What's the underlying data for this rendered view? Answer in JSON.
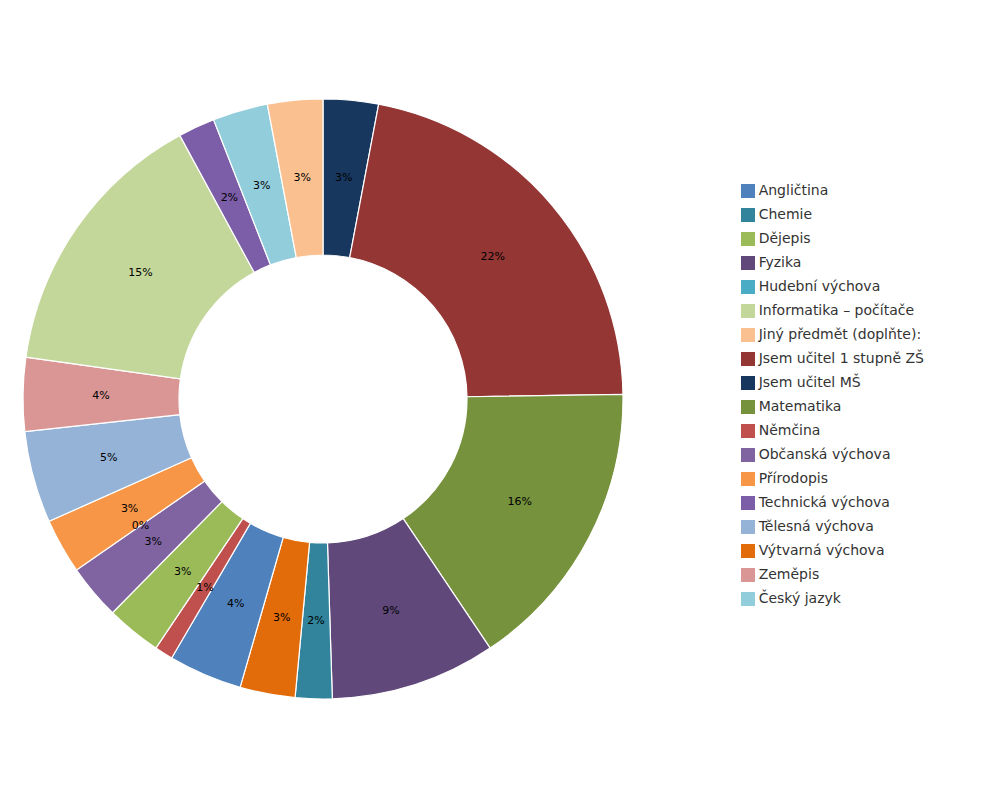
{
  "chart_data": {
    "type": "pie",
    "categories": [
      "Jsem učitel MŠ",
      "Jsem učitel 1 stupně ZŠ",
      "Matematika",
      "Fyzika",
      "Chemie",
      "Výtvarná výchova",
      "Angličtina",
      "Němčina",
      "Dějepis",
      "Občanská výchova",
      "Hudební výchova",
      "Přírodopis",
      "Tělesná výchova",
      "Zeměpis",
      "Informatika – počítače",
      "Technická výchova",
      "Český jazyk",
      "Jiný předmět (doplňte):"
    ],
    "values": [
      3,
      22,
      16,
      9,
      2,
      3,
      4,
      1,
      3,
      3,
      0,
      3,
      5,
      4,
      15,
      2,
      3,
      3
    ],
    "value_labels": [
      "3%",
      "22%",
      "16%",
      "9%",
      "2%",
      "3%",
      "4%",
      "1%",
      "3%",
      "3%",
      "0%",
      "3%",
      "5%",
      "4%",
      "15%",
      "2%",
      "3%",
      "3%"
    ],
    "colors": [
      "#17375E",
      "#943634",
      "#76923C",
      "#60497A",
      "#31849B",
      "#E26B0A",
      "#4F81BD",
      "#C0504D",
      "#9BBB59",
      "#8064A2",
      "#4BACC6",
      "#F79646",
      "#95B3D7",
      "#D99694",
      "#C4D79B",
      "#7B5EA7",
      "#92CDDC",
      "#FAC090"
    ],
    "data_labels": true,
    "legend": "right"
  }
}
